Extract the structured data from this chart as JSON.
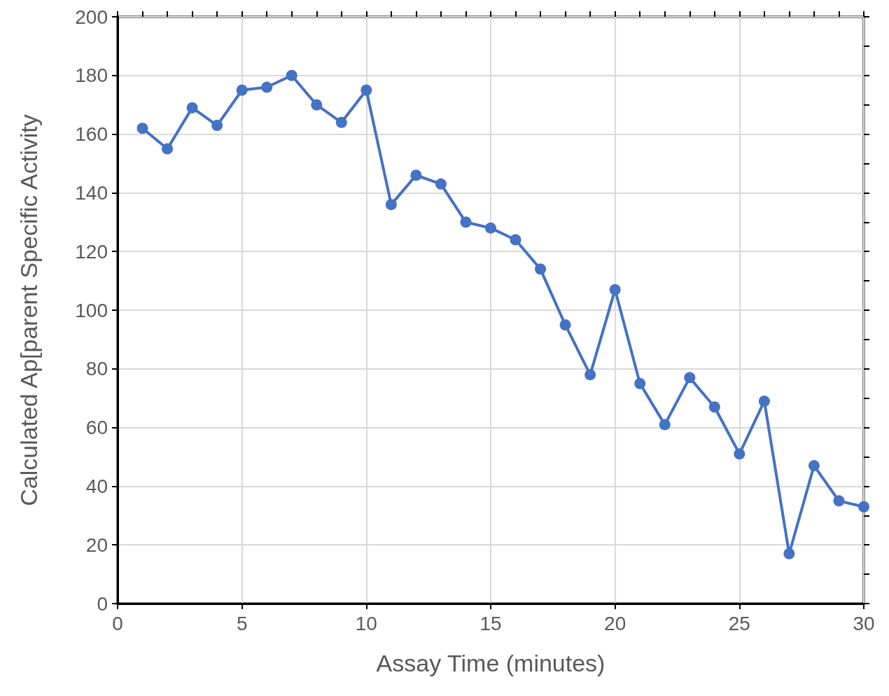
{
  "chart_data": {
    "type": "line",
    "xlabel": "Assay Time (minutes)",
    "ylabel": "Calculated Ap[parent Specific Activity",
    "x": [
      1,
      2,
      3,
      4,
      5,
      6,
      7,
      8,
      9,
      10,
      11,
      12,
      13,
      14,
      15,
      16,
      17,
      18,
      19,
      20,
      21,
      22,
      23,
      24,
      25,
      26,
      27,
      28,
      29,
      30
    ],
    "series": [
      {
        "color": "#4472c4",
        "values": [
          162,
          155,
          169,
          163,
          175,
          176,
          180,
          170,
          164,
          175,
          136,
          146,
          143,
          130,
          128,
          124,
          114,
          95,
          78,
          107,
          75,
          61,
          77,
          67,
          51,
          69,
          17,
          47,
          35,
          33
        ]
      }
    ],
    "xlim": [
      0,
      30
    ],
    "ylim": [
      0,
      200
    ],
    "xticks": [
      0,
      {
        "value": 1,
        "label": null
      },
      {
        "value": 2,
        "label": null
      },
      {
        "value": 3,
        "label": null
      },
      {
        "value": 4,
        "label": null
      },
      5,
      {
        "value": 6,
        "label": null
      },
      {
        "value": 7,
        "label": null
      },
      {
        "value": 8,
        "label": null
      },
      {
        "value": 9,
        "label": null
      },
      10,
      {
        "value": 11,
        "label": null
      },
      {
        "value": 12,
        "label": null
      },
      {
        "value": 13,
        "label": null
      },
      {
        "value": 14,
        "label": null
      },
      15,
      {
        "value": 16,
        "label": null
      },
      {
        "value": 17,
        "label": null
      },
      {
        "value": 18,
        "label": null
      },
      {
        "value": 19,
        "label": null
      },
      20,
      {
        "value": 21,
        "label": null
      },
      {
        "value": 22,
        "label": null
      },
      {
        "value": 23,
        "label": null
      },
      {
        "value": 24,
        "label": null
      },
      25,
      {
        "value": 26,
        "label": null
      },
      {
        "value": 27,
        "label": null
      },
      {
        "value": 28,
        "label": null
      },
      {
        "value": 29,
        "label": null
      },
      30
    ],
    "yticks": [
      0,
      {
        "value": 10,
        "label": null
      },
      20,
      {
        "value": 30,
        "label": null
      },
      40,
      {
        "value": 50,
        "label": null
      },
      60,
      {
        "value": 70,
        "label": null
      },
      80,
      {
        "value": 90,
        "label": null
      },
      100,
      {
        "value": 110,
        "label": null
      },
      120,
      {
        "value": 130,
        "label": null
      },
      140,
      {
        "value": 150,
        "label": null
      },
      160,
      {
        "value": 170,
        "label": null
      },
      180,
      {
        "value": 190,
        "label": null
      },
      200
    ],
    "grid": true,
    "marker": "circle",
    "line_style": "solid"
  }
}
